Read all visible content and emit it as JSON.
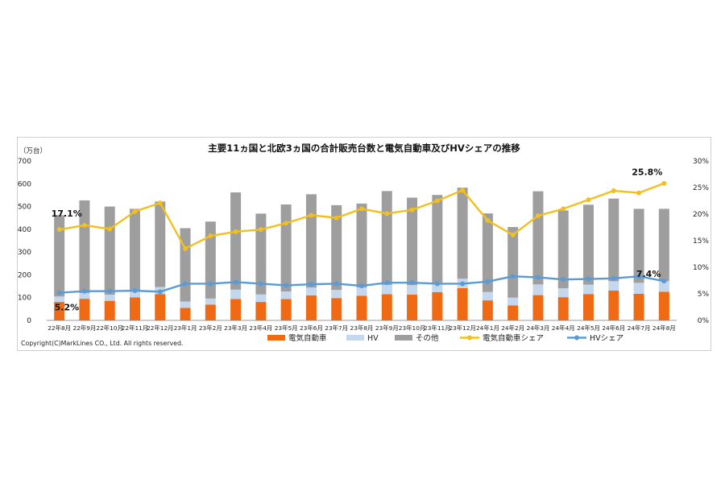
{
  "chart_data": {
    "type": "bar",
    "title": "主要11ヵ国と北欧3ヵ国の合計販売台数と電気自動車及びHVシェアの推移",
    "ylabel": "（万台）",
    "ylim": [
      0,
      700
    ],
    "y_ticks": [
      "0",
      "100",
      "200",
      "300",
      "400",
      "500",
      "600",
      "700"
    ],
    "y2lim": [
      0,
      30
    ],
    "y2_ticks": [
      "0%",
      "5%",
      "10%",
      "15%",
      "20%",
      "25%",
      "30%"
    ],
    "categories": [
      "22年8月",
      "22年9月",
      "22年10月",
      "22年11月",
      "22年12月",
      "23年1月",
      "23年2月",
      "23年3月",
      "23年4月",
      "23年5月",
      "23年6月",
      "23年7月",
      "23年8月",
      "23年9月",
      "23年10月",
      "23年11月",
      "23年12月",
      "24年1月",
      "24年2月",
      "24年3月",
      "24年4月",
      "24年5月",
      "24年6月",
      "24年7月",
      "24年8月"
    ],
    "stacked_series": [
      {
        "name": "電気自動車",
        "color": "#F06A13",
        "values": [
          81,
          95,
          86,
          101,
          116,
          55,
          69,
          94,
          81,
          94,
          110,
          98,
          108,
          115,
          113,
          124,
          142,
          88,
          66,
          111,
          102,
          116,
          131,
          117,
          126
        ]
      },
      {
        "name": "HV",
        "color": "#C4D7EC",
        "values": [
          24,
          25,
          27,
          27,
          30,
          28,
          27,
          41,
          33,
          33,
          34,
          36,
          37,
          41,
          42,
          41,
          41,
          37,
          34,
          47,
          39,
          41,
          41,
          48,
          46
        ]
      },
      {
        "name": "その他",
        "color": "#9E9E9E",
        "values": [
          357,
          407,
          387,
          362,
          376,
          322,
          338,
          427,
          355,
          382,
          410,
          372,
          368,
          412,
          384,
          386,
          400,
          345,
          310,
          409,
          342,
          351,
          363,
          325,
          318
        ]
      }
    ],
    "line_series": [
      {
        "name": "電気自動車シェア",
        "color": "#F2C01E",
        "axis": "right",
        "values": [
          17.1,
          17.9,
          17.2,
          20.5,
          22.1,
          13.5,
          15.9,
          16.7,
          17.1,
          18.3,
          19.8,
          19.3,
          21.0,
          20.1,
          20.8,
          22.5,
          24.5,
          18.8,
          16.1,
          19.7,
          21.0,
          22.7,
          24.4,
          24.0,
          25.8
        ]
      },
      {
        "name": "HVシェア",
        "color": "#5B9BD5",
        "axis": "right",
        "values": [
          5.2,
          5.5,
          5.5,
          5.6,
          5.4,
          6.9,
          6.9,
          7.2,
          6.9,
          6.6,
          6.8,
          6.9,
          6.5,
          7.1,
          7.1,
          6.9,
          6.9,
          7.3,
          8.3,
          8.1,
          7.7,
          7.8,
          7.9,
          8.3,
          7.4
        ]
      }
    ],
    "annotations": [
      {
        "text": "17.1%",
        "series": "電気自動車シェア",
        "index": 0,
        "position": "above"
      },
      {
        "text": "5.2%",
        "series": "HVシェア",
        "index": 0,
        "position": "below"
      },
      {
        "text": "25.8%",
        "series": "電気自動車シェア",
        "index": 24,
        "position": "above"
      },
      {
        "text": "7.4%",
        "series": "HVシェア",
        "index": 24,
        "position": "above"
      }
    ],
    "legend_position": "bottom",
    "grid": false
  },
  "copyright": "Copyright(C)MarkLines CO., Ltd. All rights reserved."
}
